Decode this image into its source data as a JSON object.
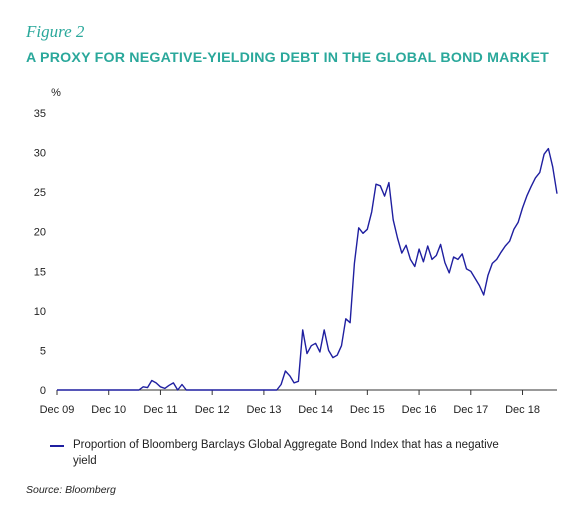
{
  "figure_label": "Figure 2",
  "chart_data": {
    "type": "line",
    "title": "A PROXY FOR NEGATIVE-YIELDING DEBT IN THE GLOBAL BOND MARKET",
    "ylabel": "%",
    "xlabel": "",
    "ylim": [
      0,
      35
    ],
    "yticks": [
      0,
      5,
      10,
      15,
      20,
      25,
      30,
      35
    ],
    "xlim": [
      "2009-12",
      "2019-08"
    ],
    "xticks": [
      "Dec 09",
      "Dec 10",
      "Dec 11",
      "Dec 12",
      "Dec 13",
      "Dec 14",
      "Dec 15",
      "Dec 16",
      "Dec 17",
      "Dec 18"
    ],
    "grid": false,
    "legend_position": "bottom",
    "series": [
      {
        "name": "Proportion of Bloomberg Barclays Global Aggregate Bond Index that has a negative yield",
        "color": "#1f1fa0",
        "points": [
          [
            "2009-12",
            0
          ],
          [
            "2011-07",
            0
          ],
          [
            "2011-08",
            0.4
          ],
          [
            "2011-09",
            0.3
          ],
          [
            "2011-10",
            1.2
          ],
          [
            "2011-11",
            0.9
          ],
          [
            "2011-12",
            0.4
          ],
          [
            "2012-01",
            0.2
          ],
          [
            "2012-02",
            0.6
          ],
          [
            "2012-03",
            0.9
          ],
          [
            "2012-04",
            0
          ],
          [
            "2012-05",
            0.7
          ],
          [
            "2012-06",
            0
          ],
          [
            "2014-03",
            0
          ],
          [
            "2014-04",
            0.7
          ],
          [
            "2014-05",
            2.4
          ],
          [
            "2014-06",
            1.8
          ],
          [
            "2014-07",
            0.9
          ],
          [
            "2014-08",
            1.1
          ],
          [
            "2014-09",
            7.6
          ],
          [
            "2014-10",
            4.6
          ],
          [
            "2014-11",
            5.6
          ],
          [
            "2014-12",
            5.9
          ],
          [
            "2015-01",
            4.8
          ],
          [
            "2015-02",
            7.6
          ],
          [
            "2015-03",
            5.0
          ],
          [
            "2015-04",
            4.1
          ],
          [
            "2015-05",
            4.4
          ],
          [
            "2015-06",
            5.6
          ],
          [
            "2015-07",
            9.0
          ],
          [
            "2015-08",
            8.5
          ],
          [
            "2015-09",
            16.0
          ],
          [
            "2015-10",
            20.5
          ],
          [
            "2015-11",
            19.8
          ],
          [
            "2015-12",
            20.3
          ],
          [
            "2016-01",
            22.5
          ],
          [
            "2016-02",
            26.0
          ],
          [
            "2016-03",
            25.8
          ],
          [
            "2016-04",
            24.5
          ],
          [
            "2016-05",
            26.2
          ],
          [
            "2016-06",
            21.5
          ],
          [
            "2016-07",
            19.2
          ],
          [
            "2016-08",
            17.3
          ],
          [
            "2016-09",
            18.3
          ],
          [
            "2016-10",
            16.5
          ],
          [
            "2016-11",
            15.6
          ],
          [
            "2016-12",
            17.8
          ],
          [
            "2017-01",
            16.2
          ],
          [
            "2017-02",
            18.2
          ],
          [
            "2017-03",
            16.5
          ],
          [
            "2017-04",
            17.0
          ],
          [
            "2017-05",
            18.4
          ],
          [
            "2017-06",
            16.1
          ],
          [
            "2017-07",
            14.8
          ],
          [
            "2017-08",
            16.8
          ],
          [
            "2017-09",
            16.5
          ],
          [
            "2017-10",
            17.2
          ],
          [
            "2017-11",
            15.3
          ],
          [
            "2017-12",
            15.0
          ],
          [
            "2018-01",
            14.1
          ],
          [
            "2018-02",
            13.2
          ],
          [
            "2018-03",
            12.0
          ],
          [
            "2018-04",
            14.5
          ],
          [
            "2018-05",
            16.0
          ],
          [
            "2018-06",
            16.5
          ],
          [
            "2018-07",
            17.4
          ],
          [
            "2018-08",
            18.2
          ],
          [
            "2018-09",
            18.8
          ],
          [
            "2018-10",
            20.3
          ],
          [
            "2018-11",
            21.2
          ],
          [
            "2018-12",
            23.0
          ],
          [
            "2019-01",
            24.5
          ],
          [
            "2019-02",
            25.7
          ],
          [
            "2019-03",
            26.8
          ],
          [
            "2019-04",
            27.5
          ],
          [
            "2019-05",
            29.8
          ],
          [
            "2019-06",
            30.5
          ],
          [
            "2019-07",
            28.2
          ],
          [
            "2019-08",
            24.8
          ]
        ]
      }
    ]
  },
  "source": "Source: Bloomberg"
}
